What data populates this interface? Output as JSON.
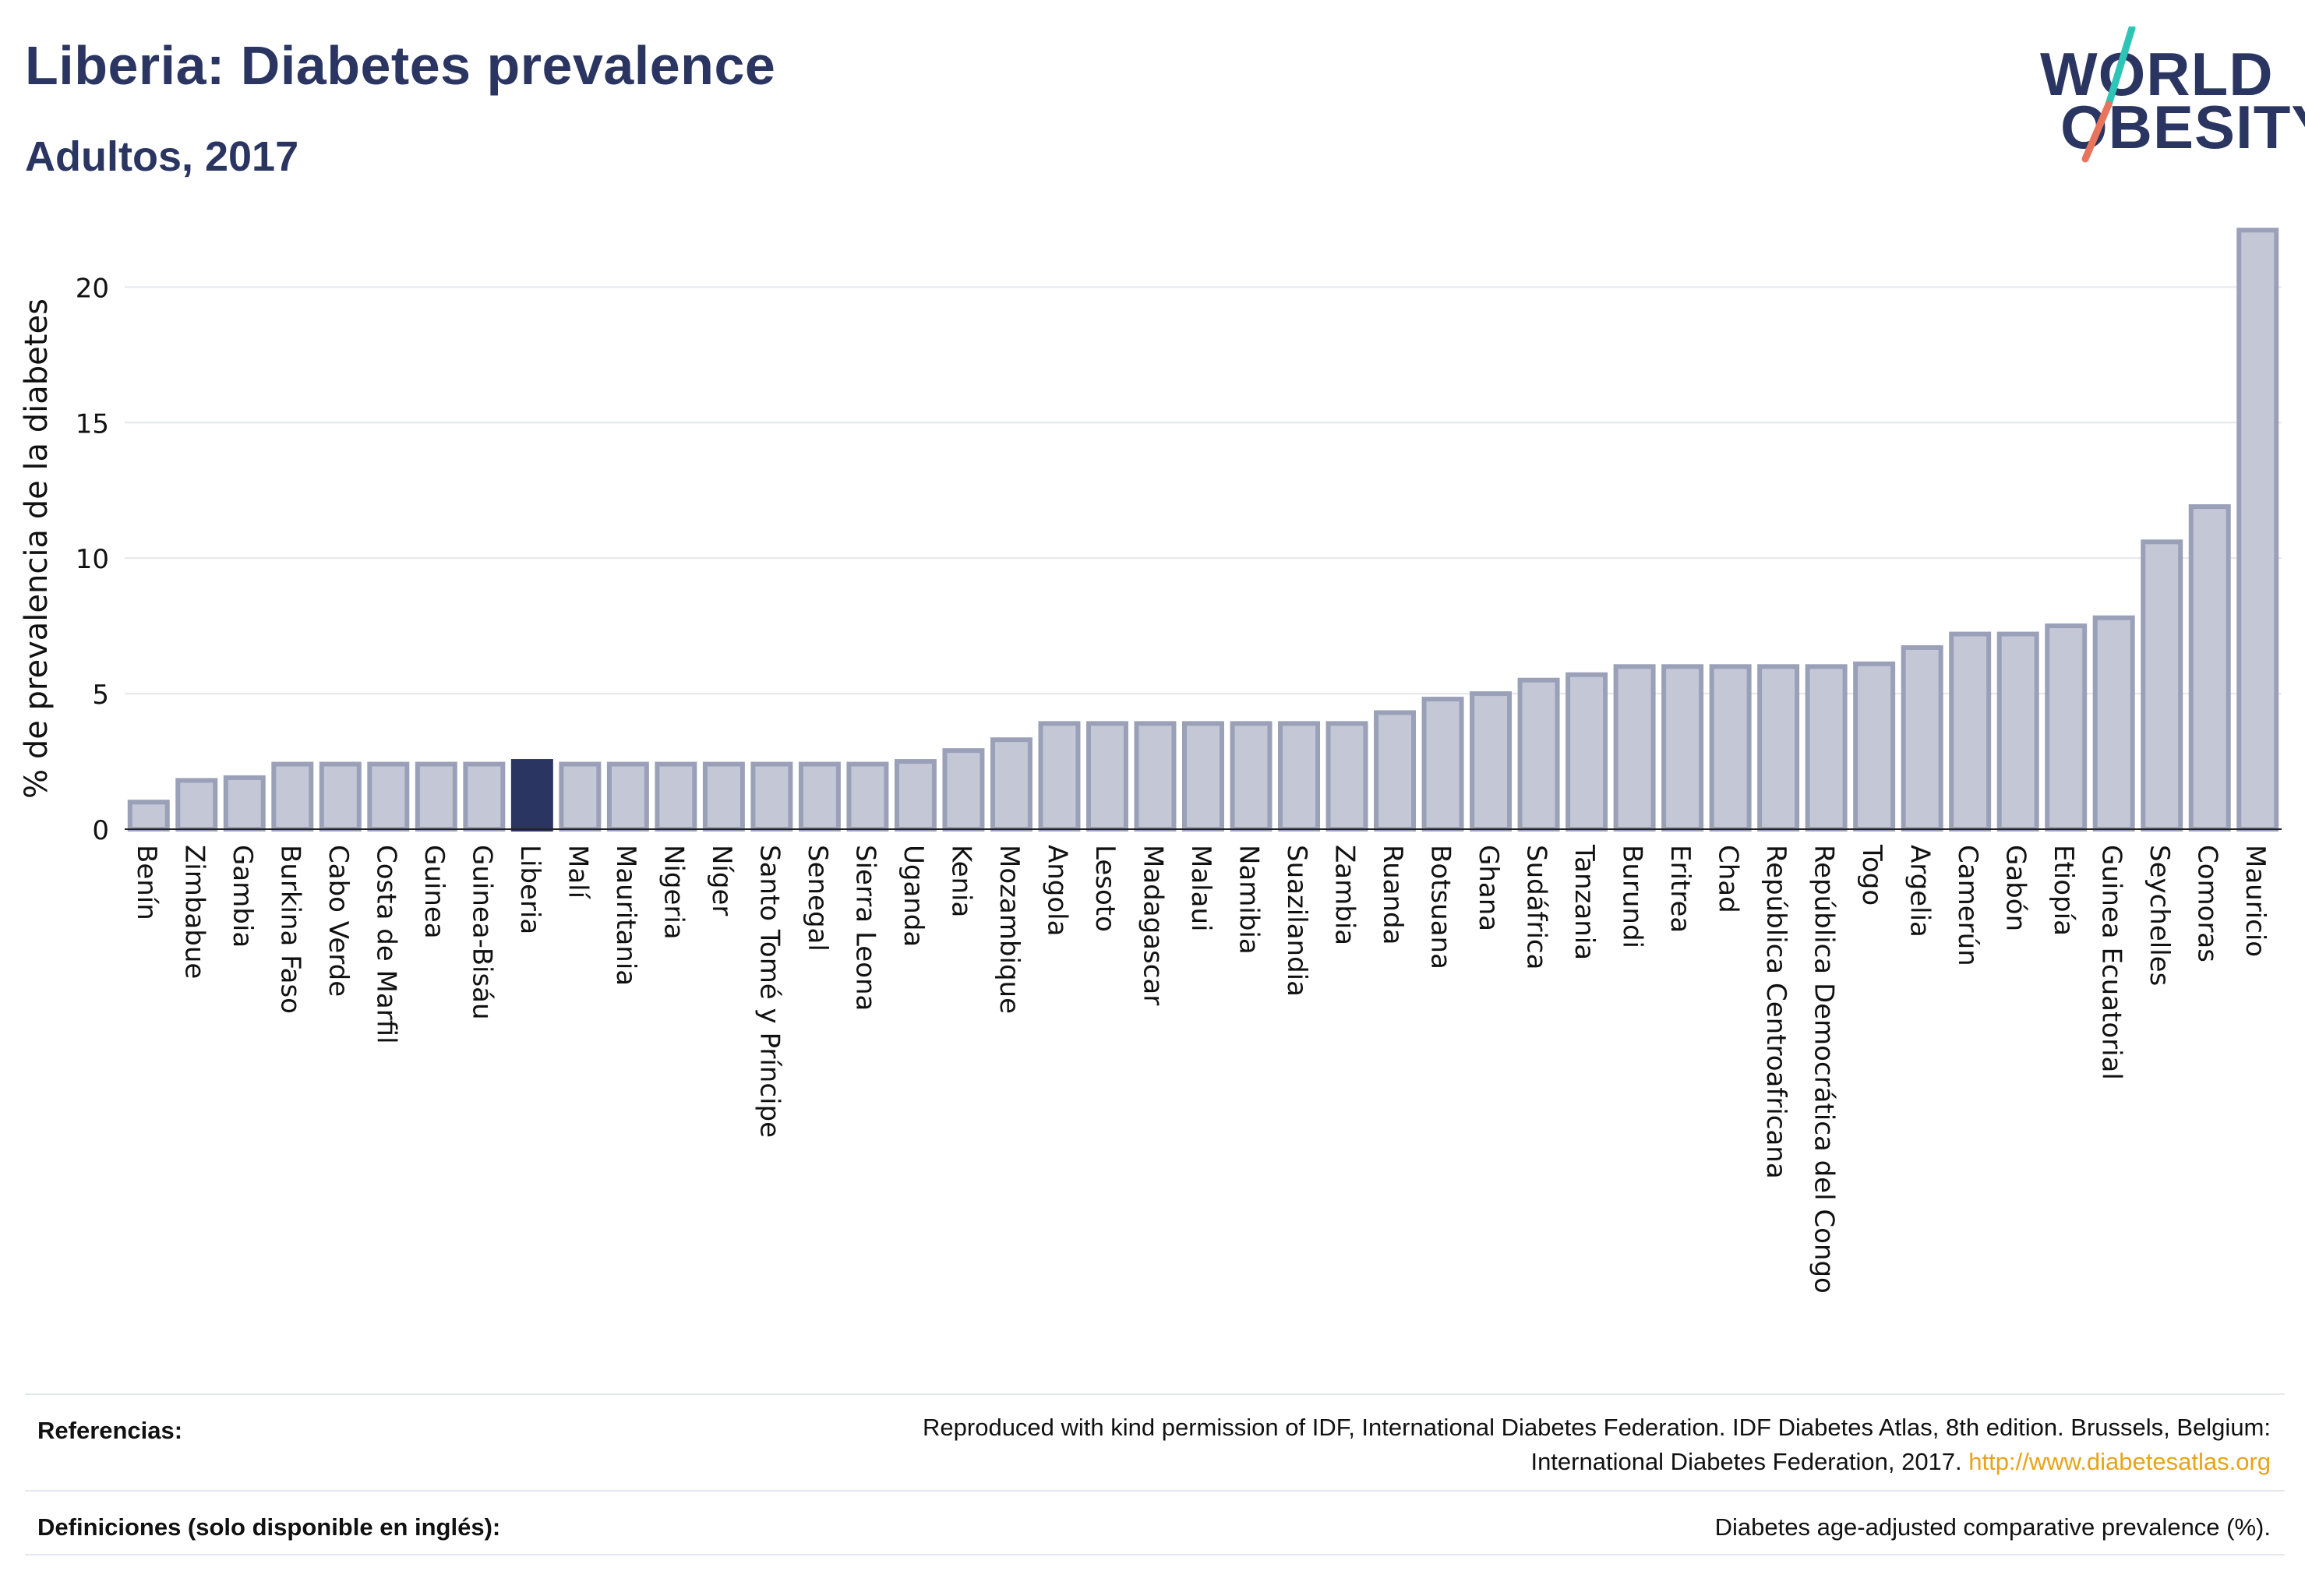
{
  "header": {
    "title": "Liberia: Diabetes prevalence",
    "subtitle": "Adultos, 2017"
  },
  "logo": {
    "line1": "WORLD",
    "line2": "OBESITY",
    "colors": {
      "text": "#2a3561",
      "slash_top": "#2ec4b6",
      "slash_bottom": "#e8745b"
    }
  },
  "chart_data": {
    "type": "bar",
    "highlight": "Liberia",
    "colors": {
      "bar": "#c3c7d6",
      "bar_edge": "#9aa0b8",
      "highlight": "#2a3561"
    },
    "ylabel": "% de prevalencia de la diabetes",
    "xlabel": "",
    "ylim": [
      0,
      23
    ],
    "yticks": [
      0,
      5,
      10,
      15,
      20
    ],
    "grid": true,
    "categories": [
      "Benín",
      "Zimbabue",
      "Gambia",
      "Burkina Faso",
      "Cabo Verde",
      "Costa de Marfil",
      "Guinea",
      "Guinea-Bisáu",
      "Liberia",
      "Malí",
      "Mauritania",
      "Nigeria",
      "Níger",
      "Santo Tomé y Príncipe",
      "Senegal",
      "Sierra Leona",
      "Uganda",
      "Kenia",
      "Mozambique",
      "Angola",
      "Lesoto",
      "Madagascar",
      "Malaui",
      "Namibia",
      "Suazilandia",
      "Zambia",
      "Ruanda",
      "Botsuana",
      "Ghana",
      "Sudáfrica",
      "Tanzania",
      "Burundi",
      "Eritrea",
      "Chad",
      "República Centroafricana",
      "República Democrática del Congo",
      "Togo",
      "Argelia",
      "Camerún",
      "Gabón",
      "Etiopía",
      "Guinea Ecuatorial",
      "Seychelles",
      "Comoras",
      "Mauricio"
    ],
    "values": [
      1.0,
      1.8,
      1.9,
      2.4,
      2.4,
      2.4,
      2.4,
      2.4,
      2.5,
      2.4,
      2.4,
      2.4,
      2.4,
      2.4,
      2.4,
      2.4,
      2.5,
      2.9,
      3.3,
      3.9,
      3.9,
      3.9,
      3.9,
      3.9,
      3.9,
      3.9,
      4.3,
      4.8,
      5.0,
      5.5,
      5.7,
      6.0,
      6.0,
      6.0,
      6.0,
      6.0,
      6.1,
      6.7,
      7.2,
      7.2,
      7.5,
      7.8,
      10.6,
      11.9,
      22.1
    ]
  },
  "references": {
    "label": "Referencias:",
    "text_line1": "Reproduced with kind permission of IDF, International Diabetes Federation. IDF Diabetes Atlas, 8th edition. Brussels, Belgium:",
    "text_line2": "International Diabetes Federation, 2017.",
    "link": "http://www.diabetesatlas.org"
  },
  "definitions": {
    "label": "Definiciones (solo disponible en inglés):",
    "text": "Diabetes age-adjusted comparative prevalence (%)."
  }
}
